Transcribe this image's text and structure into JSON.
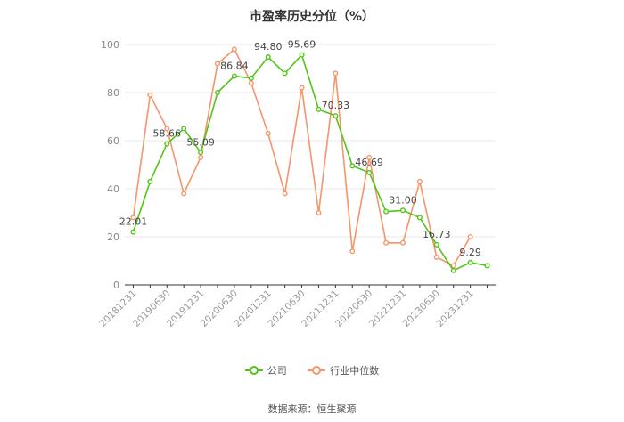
{
  "chart_data": {
    "type": "line",
    "title": "市盈率历史分位（%）",
    "ylim": [
      0,
      100
    ],
    "yticks": [
      0,
      20,
      40,
      60,
      80,
      100
    ],
    "x": [
      "20181231",
      "20190331",
      "20190630",
      "20190930",
      "20191231",
      "20200331",
      "20200630",
      "20200930",
      "20201231",
      "20210331",
      "20210630",
      "20210930",
      "20211231",
      "20220331",
      "20220630",
      "20220930",
      "20221231",
      "20230331",
      "20230630",
      "20230930",
      "20231231",
      "20240331"
    ],
    "xtick_labels": [
      "20181231",
      "20190630",
      "20191231",
      "20200630",
      "20201231",
      "20210630",
      "20211231",
      "20220630",
      "20221231",
      "20230630",
      "20231231"
    ],
    "grid": true,
    "legend_position": "bottom",
    "series": [
      {
        "name": "公司",
        "color": "#52c41a",
        "values": [
          22.01,
          43,
          58.66,
          65,
          55.09,
          80,
          86.84,
          86,
          94.8,
          88,
          95.69,
          73,
          70.33,
          49.5,
          46.69,
          30.5,
          31.0,
          28,
          16.73,
          6,
          9.29,
          8
        ],
        "labels": [
          "22.01",
          "",
          "58.66",
          "",
          "55.09",
          "",
          "86.84",
          "",
          "94.80",
          "",
          "95.69",
          "",
          "70.33",
          "",
          "46.69",
          "",
          "31.00",
          "",
          "16.73",
          "",
          "9.29",
          ""
        ]
      },
      {
        "name": "行业中位数",
        "color": "#f4956a",
        "values": [
          28,
          79,
          65,
          38,
          53,
          92,
          98,
          84,
          63,
          38,
          82,
          30,
          88,
          14,
          53,
          17.5,
          17.5,
          43,
          11.5,
          8,
          20,
          null
        ]
      }
    ],
    "source": "数据来源：恒生聚源"
  }
}
